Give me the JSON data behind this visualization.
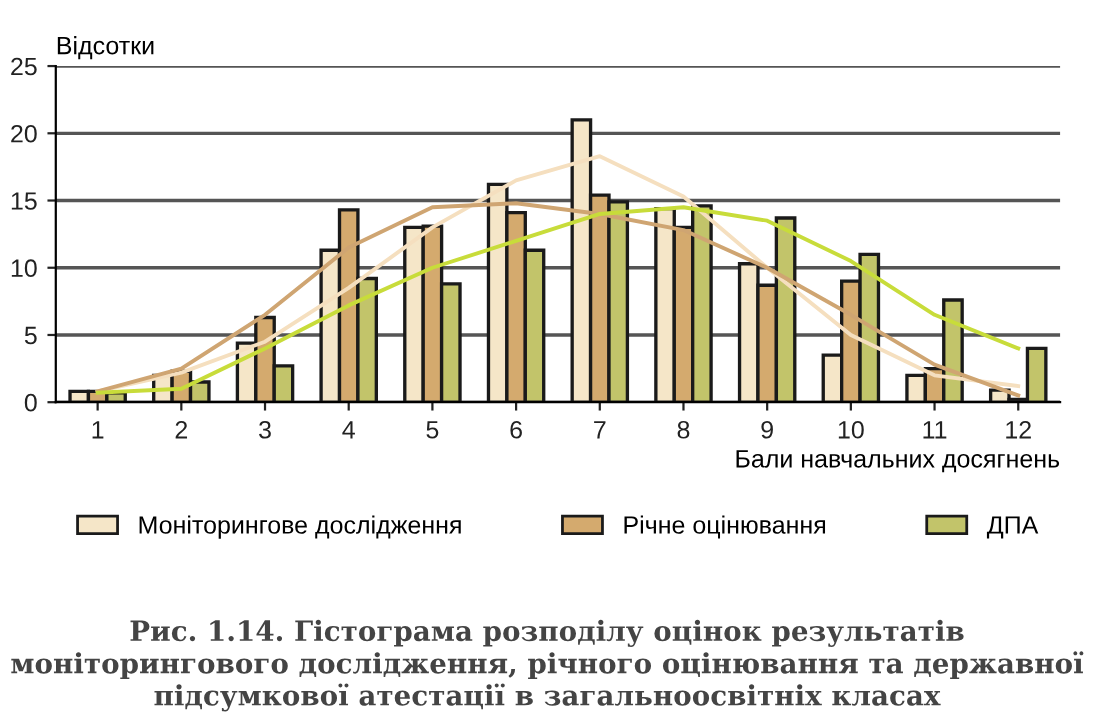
{
  "chart_data": {
    "type": "bar",
    "title": "Рис. 1.14. Гістограма розподілу оцінок результатів моніторингового дослідження, річного оцінювання та державної підсумкової атестації в загальноосвітніх класах",
    "ylabel": "Відсотки",
    "xlabel": "Бали навчальних досягнень",
    "categories": [
      "1",
      "2",
      "3",
      "4",
      "5",
      "6",
      "7",
      "8",
      "9",
      "10",
      "11",
      "12"
    ],
    "series": [
      {
        "name": "Моніторингове дослідження",
        "color": "#f5e6c8",
        "values": [
          0.8,
          2.0,
          4.4,
          11.3,
          13.0,
          16.2,
          21.0,
          14.4,
          10.3,
          3.5,
          2.0,
          0.9
        ]
      },
      {
        "name": "Річне оцінювання",
        "color": "#d4aa6e",
        "values": [
          0.8,
          2.3,
          6.3,
          14.3,
          13.1,
          14.1,
          15.4,
          13.0,
          8.7,
          9.0,
          2.5,
          0.2
        ]
      },
      {
        "name": "ДПА",
        "color": "#c2c46a",
        "values": [
          0.7,
          1.5,
          2.7,
          9.2,
          8.8,
          11.3,
          14.9,
          14.6,
          13.7,
          11.0,
          7.6,
          4.0
        ]
      },
      {
        "type": "line",
        "color": "#f5dfbf",
        "values": [
          0.8,
          2.2,
          4.5,
          8.5,
          13.0,
          16.5,
          18.3,
          15.3,
          10.0,
          5.0,
          2.0,
          1.2
        ]
      },
      {
        "type": "line",
        "color": "#cfa572",
        "values": [
          0.8,
          2.5,
          6.5,
          11.5,
          14.5,
          14.8,
          14.0,
          12.8,
          10.0,
          6.5,
          2.8,
          0.5
        ]
      },
      {
        "type": "line",
        "color": "#c8dc3a",
        "values": [
          0.7,
          1.0,
          4.0,
          7.2,
          10.0,
          12.0,
          14.0,
          14.5,
          13.5,
          10.5,
          6.5,
          4.0
        ]
      }
    ],
    "ylim": [
      0,
      25
    ],
    "yticks": [
      0,
      5,
      10,
      15,
      20,
      25
    ],
    "grid": "y",
    "legend": "bottom"
  }
}
